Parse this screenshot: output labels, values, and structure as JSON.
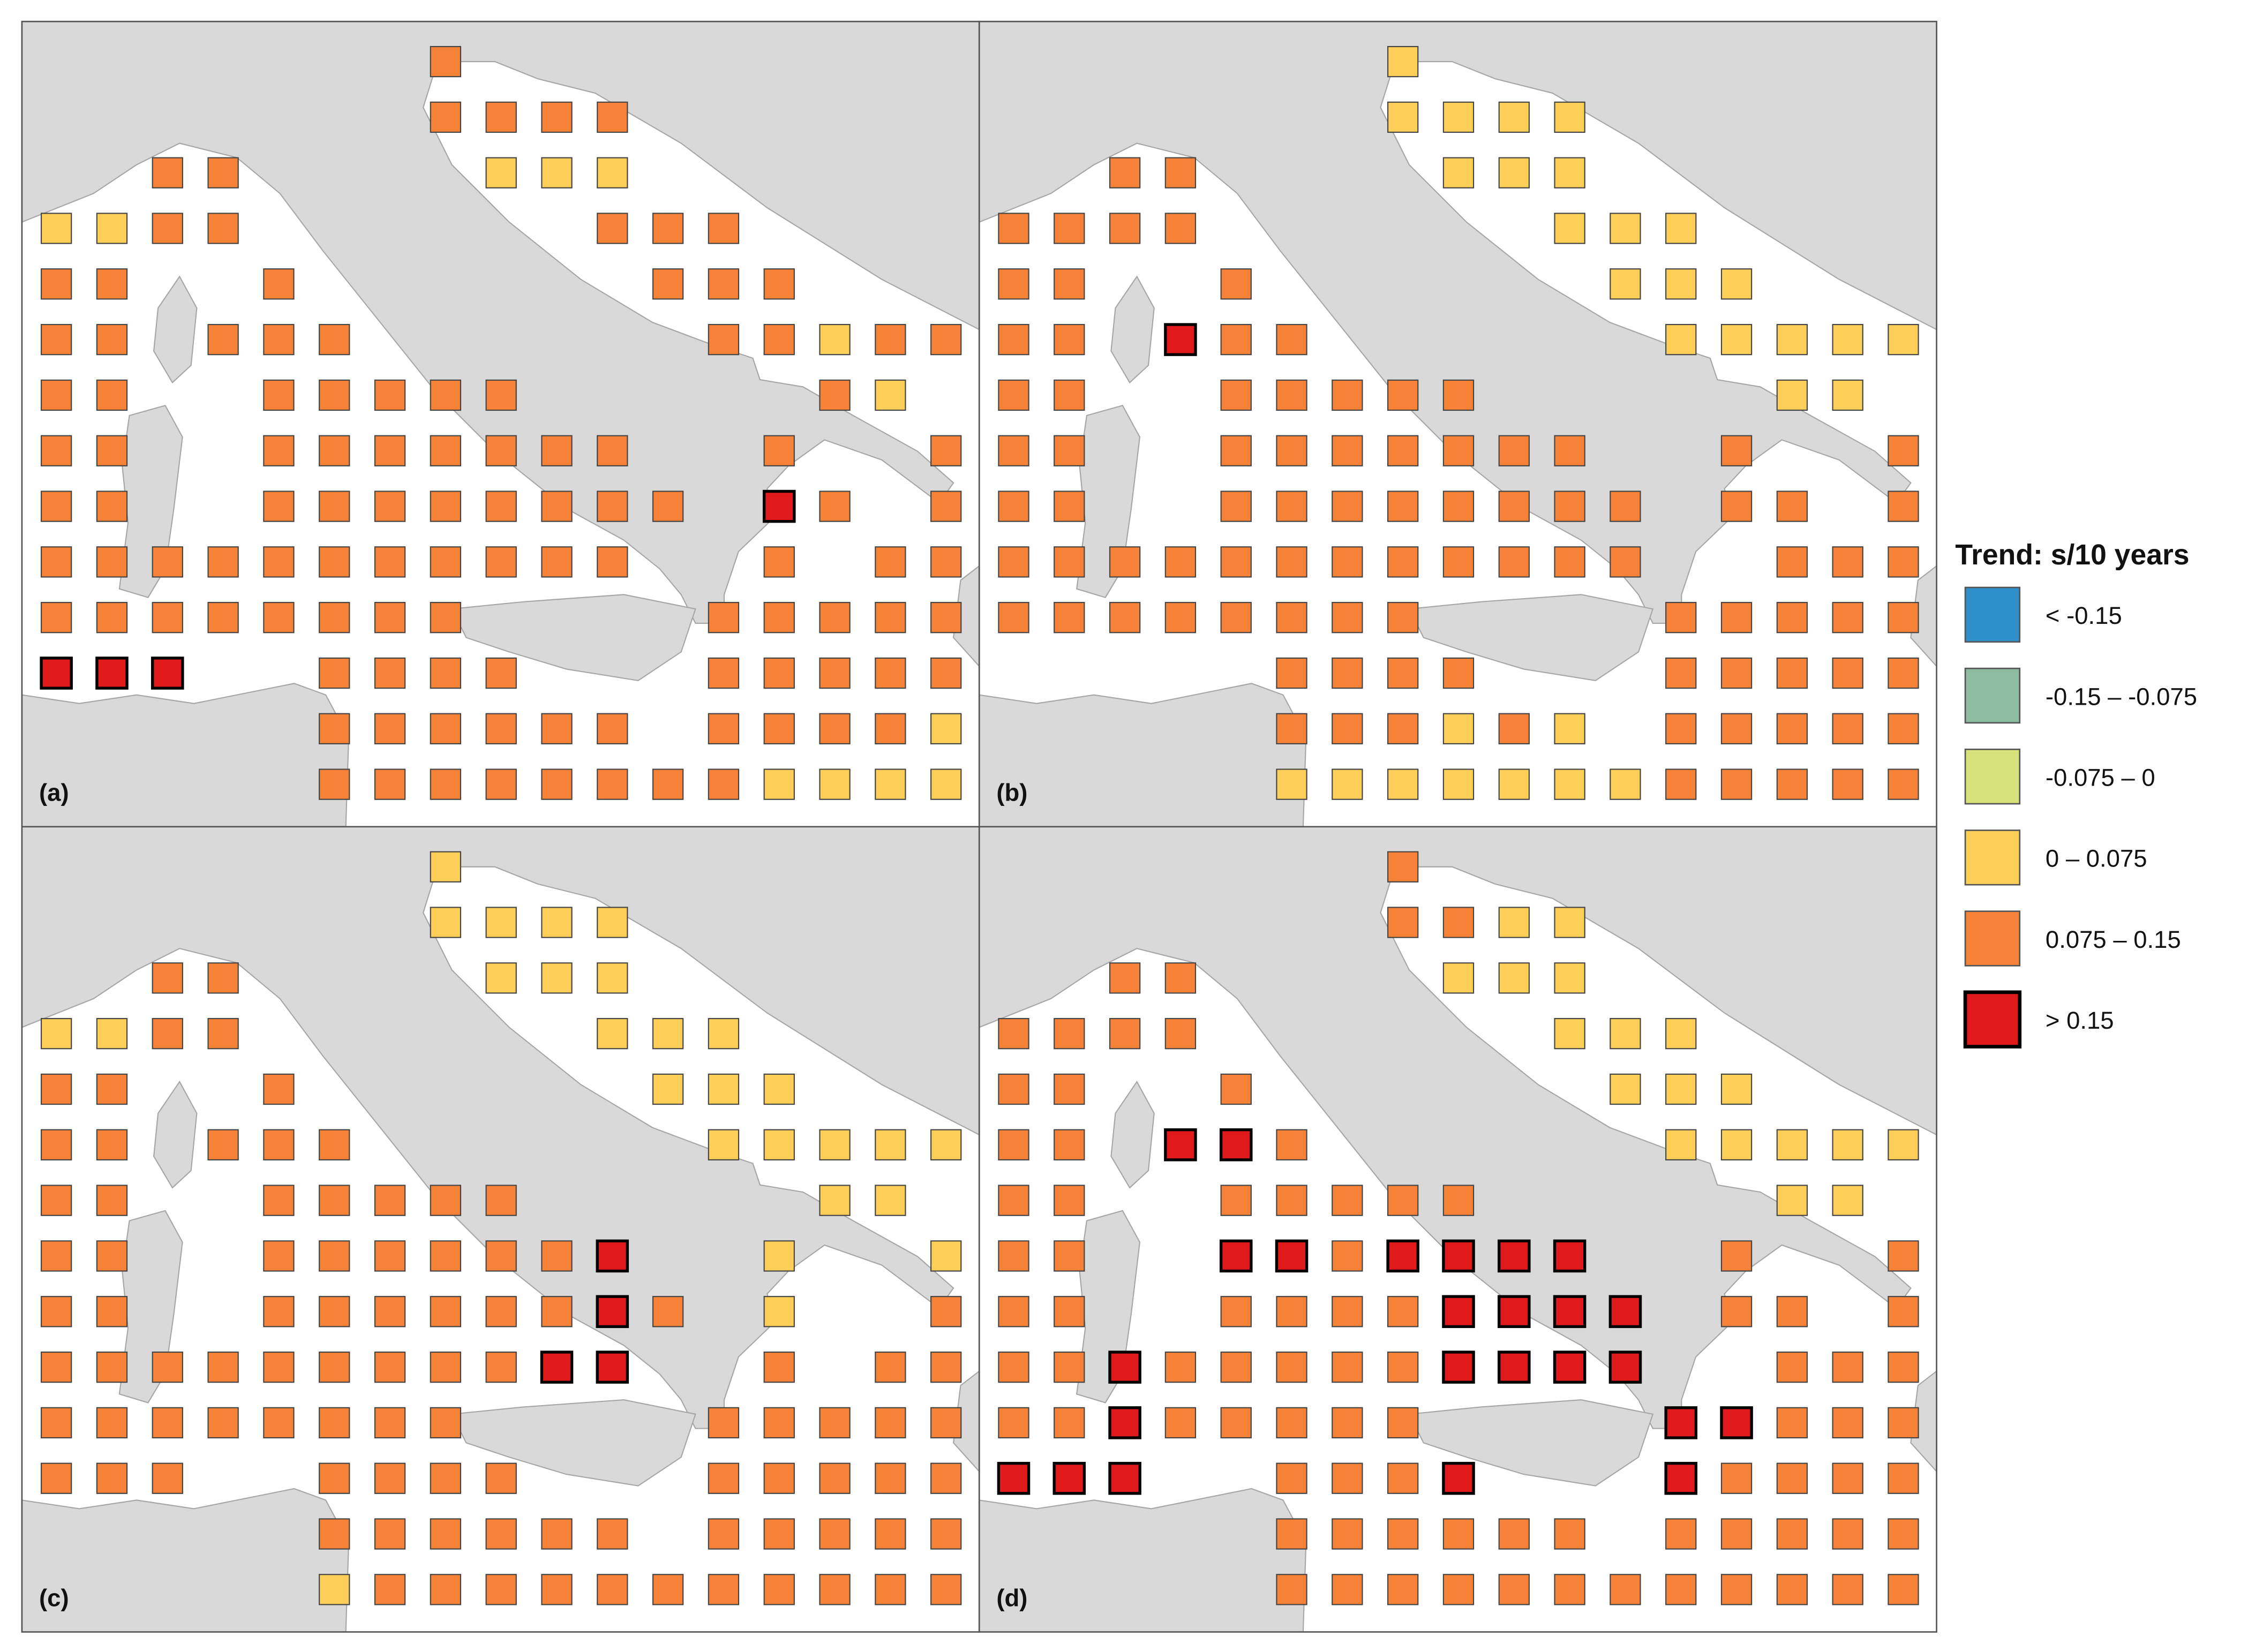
{
  "legend": {
    "title": "Trend: s/10 years",
    "items": [
      {
        "label": "< -0.15",
        "color": "#2f8fc9"
      },
      {
        "label": "-0.15 – -0.075",
        "color": "#8dbba1"
      },
      {
        "label": "-0.075 – 0",
        "color": "#d8e27b"
      },
      {
        "label": "0 – 0.075",
        "color": "#fdcf58"
      },
      {
        "label": "0.075 – 0.15",
        "color": "#f58236"
      },
      {
        "label": "> 0.15",
        "color": "#e01a1a"
      }
    ]
  },
  "panels": [
    {
      "label": "(a)",
      "cells": [
        ".......4.........",
        ".......4444......",
        "..44....333......",
        "3344......444....",
        "44..4......444...",
        "44.444......44344",
        "44..44444.....43.",
        "44..4444444..4..4",
        "44..44444444.54.4",
        "44444444444..4.44",
        "44444444....44444",
        "555..4444...44444",
        ".....444444.44443",
        ".....444444443333"
      ]
    },
    {
      "label": "(b)",
      "cells": [
        ".......3.........",
        ".......3333......",
        "..44....333......",
        "4444......333....",
        "44..4......333...",
        "44.544......33333",
        "44..44444.....33.",
        "44..4444444..4..4",
        "44..44444444.44.4",
        "444444444444..444",
        "44444444....44444",
        ".....4444...44444",
        ".....444343.44444",
        ".....333333344444"
      ]
    },
    {
      "label": "(c)",
      "cells": [
        ".......3.........",
        ".......3333......",
        "..44....333......",
        "3344......333....",
        "44..4......333...",
        "44.444......33333",
        "44..44444.....33.",
        "44..4444445..3..3",
        "44..44444454.3..4",
        "44444444455..4.44",
        "44444444....44444",
        "444..4444...44444",
        ".....444444.44444",
        ".....344444444444"
      ]
    },
    {
      "label": "(d)",
      "cells": [
        ".......4.........",
        ".......4433......",
        "..44....333......",
        "4444......333....",
        "44..4......333...",
        "44.554......33333",
        "44..44444.....33.",
        "44..5545555..4..4",
        "44..44445555.44.4",
        "445444445555..444",
        "44544444....55444",
        "555..4445...54444",
        ".....444444.44444",
        ".....444444444444"
      ]
    }
  ]
}
